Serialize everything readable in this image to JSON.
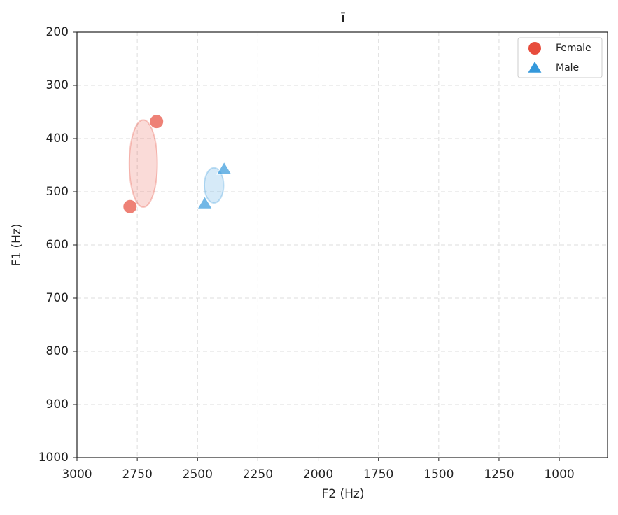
{
  "chart_data": {
    "type": "scatter",
    "title": "ī",
    "x_label": "F2 (Hz)",
    "y_label": "F1 (Hz)",
    "xlim": [
      3000,
      800
    ],
    "ylim": [
      1000,
      200
    ],
    "xticks": [
      3000,
      2750,
      2500,
      2250,
      2000,
      1750,
      1500,
      1250,
      1000
    ],
    "yticks": [
      200,
      300,
      400,
      500,
      600,
      700,
      800,
      900,
      1000
    ],
    "grid": true,
    "legend": "upper right",
    "series": [
      {
        "name": "Female",
        "color": "#e74c3c",
        "marker": "circle",
        "x": [
          2780,
          2670
        ],
        "values": [
          528,
          368
        ],
        "ellipse": {
          "cx": 2725,
          "cy": 447,
          "rx": 58,
          "ry": 82
        }
      },
      {
        "name": "Male",
        "color": "#3498db",
        "marker": "triangle",
        "x": [
          2470,
          2390
        ],
        "values": [
          522,
          457
        ],
        "ellipse": {
          "cx": 2432,
          "cy": 488,
          "rx": 40,
          "ry": 33
        }
      }
    ]
  }
}
